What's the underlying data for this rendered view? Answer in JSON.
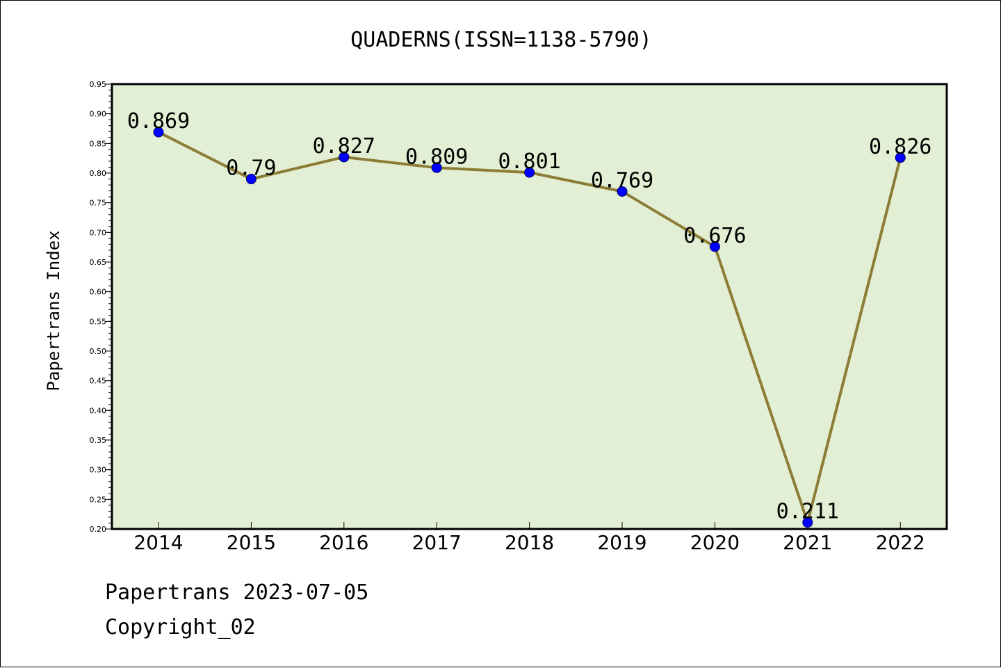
{
  "chart_data": {
    "type": "line",
    "title": "QUADERNS(ISSN=1138-5790)",
    "xlabel": "",
    "ylabel": "Papertrans Index",
    "categories": [
      "2014",
      "2015",
      "2016",
      "2017",
      "2018",
      "2019",
      "2020",
      "2021",
      "2022"
    ],
    "series": [
      {
        "values": [
          0.869,
          0.79,
          0.827,
          0.809,
          0.801,
          0.769,
          0.676,
          0.211,
          0.826
        ],
        "labels": [
          "0.869",
          "0.79",
          "0.827",
          "0.809",
          "0.801",
          "0.769",
          "0.676",
          "0.211",
          "0.826"
        ]
      }
    ],
    "ylim": [
      0.2,
      0.95
    ],
    "yticks": [
      "0.20",
      "0.25",
      "0.30",
      "0.35",
      "0.40",
      "0.45",
      "0.50",
      "0.55",
      "0.60",
      "0.65",
      "0.70",
      "0.75",
      "0.80",
      "0.85",
      "0.90",
      "0.95"
    ],
    "grid": false,
    "legend": "none",
    "colors": {
      "plot_background": "#e2efd5",
      "line": "#8b7d35",
      "marker": "#0000ff"
    }
  },
  "footer": {
    "date_line": "Papertrans 2023-07-05",
    "copyright_line": "Copyright_02"
  }
}
